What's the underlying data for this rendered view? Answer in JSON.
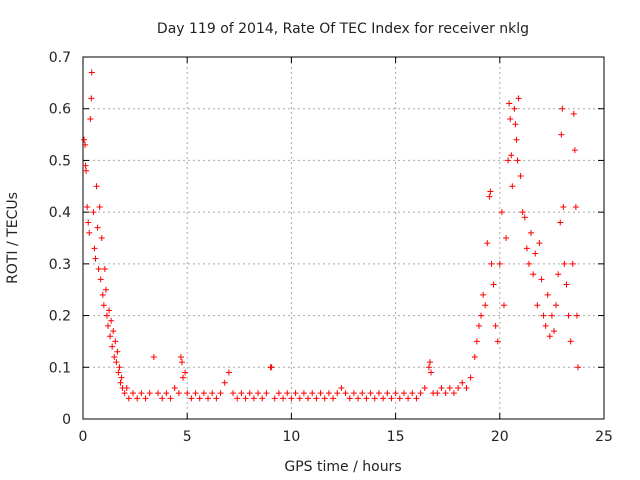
{
  "chart_data": {
    "type": "scatter",
    "title": "Day 119 of 2014, Rate Of TEC Index for receiver nklg",
    "xlabel": "GPS time / hours",
    "ylabel": "ROTI / TECUs",
    "xlim": [
      0,
      25
    ],
    "ylim": [
      0,
      0.7
    ],
    "xticks": [
      "0",
      "5",
      "10",
      "15",
      "20",
      "25"
    ],
    "yticks": [
      "0",
      "0.1",
      "0.2",
      "0.3",
      "0.4",
      "0.5",
      "0.6",
      "0.7"
    ],
    "grid": true,
    "marker": "+",
    "color": "#ff0000",
    "series": [
      {
        "name": "nklg",
        "points": [
          [
            0.05,
            0.54
          ],
          [
            0.1,
            0.53
          ],
          [
            0.12,
            0.49
          ],
          [
            0.15,
            0.48
          ],
          [
            0.2,
            0.41
          ],
          [
            0.25,
            0.38
          ],
          [
            0.3,
            0.36
          ],
          [
            0.35,
            0.58
          ],
          [
            0.4,
            0.62
          ],
          [
            0.42,
            0.67
          ],
          [
            0.5,
            0.4
          ],
          [
            0.55,
            0.33
          ],
          [
            0.6,
            0.31
          ],
          [
            0.65,
            0.45
          ],
          [
            0.7,
            0.37
          ],
          [
            0.75,
            0.29
          ],
          [
            0.8,
            0.41
          ],
          [
            0.85,
            0.27
          ],
          [
            0.9,
            0.35
          ],
          [
            0.95,
            0.24
          ],
          [
            1.0,
            0.22
          ],
          [
            1.05,
            0.29
          ],
          [
            1.1,
            0.25
          ],
          [
            1.15,
            0.2
          ],
          [
            1.2,
            0.18
          ],
          [
            1.25,
            0.21
          ],
          [
            1.3,
            0.16
          ],
          [
            1.35,
            0.19
          ],
          [
            1.4,
            0.14
          ],
          [
            1.45,
            0.17
          ],
          [
            1.5,
            0.12
          ],
          [
            1.55,
            0.15
          ],
          [
            1.6,
            0.11
          ],
          [
            1.65,
            0.13
          ],
          [
            1.7,
            0.09
          ],
          [
            1.75,
            0.1
          ],
          [
            1.8,
            0.07
          ],
          [
            1.85,
            0.08
          ],
          [
            1.9,
            0.06
          ],
          [
            2.0,
            0.05
          ],
          [
            2.1,
            0.06
          ],
          [
            2.2,
            0.04
          ],
          [
            2.4,
            0.05
          ],
          [
            2.6,
            0.04
          ],
          [
            2.8,
            0.05
          ],
          [
            3.0,
            0.04
          ],
          [
            3.2,
            0.05
          ],
          [
            3.4,
            0.12
          ],
          [
            3.6,
            0.05
          ],
          [
            3.8,
            0.04
          ],
          [
            4.0,
            0.05
          ],
          [
            4.2,
            0.04
          ],
          [
            4.4,
            0.06
          ],
          [
            4.6,
            0.05
          ],
          [
            4.7,
            0.12
          ],
          [
            4.75,
            0.11
          ],
          [
            4.8,
            0.08
          ],
          [
            4.9,
            0.09
          ],
          [
            5.0,
            0.05
          ],
          [
            5.2,
            0.04
          ],
          [
            5.4,
            0.05
          ],
          [
            5.6,
            0.04
          ],
          [
            5.8,
            0.05
          ],
          [
            6.0,
            0.04
          ],
          [
            6.2,
            0.05
          ],
          [
            6.4,
            0.04
          ],
          [
            6.6,
            0.05
          ],
          [
            6.8,
            0.07
          ],
          [
            7.0,
            0.09
          ],
          [
            7.2,
            0.05
          ],
          [
            7.4,
            0.04
          ],
          [
            7.6,
            0.05
          ],
          [
            7.8,
            0.04
          ],
          [
            8.0,
            0.05
          ],
          [
            8.2,
            0.04
          ],
          [
            8.4,
            0.05
          ],
          [
            8.6,
            0.04
          ],
          [
            8.8,
            0.05
          ],
          [
            9.0,
            0.1
          ],
          [
            9.05,
            0.1
          ],
          [
            9.2,
            0.04
          ],
          [
            9.4,
            0.05
          ],
          [
            9.6,
            0.04
          ],
          [
            9.8,
            0.05
          ],
          [
            10.0,
            0.04
          ],
          [
            10.2,
            0.05
          ],
          [
            10.4,
            0.04
          ],
          [
            10.6,
            0.05
          ],
          [
            10.8,
            0.04
          ],
          [
            11.0,
            0.05
          ],
          [
            11.2,
            0.04
          ],
          [
            11.4,
            0.05
          ],
          [
            11.6,
            0.04
          ],
          [
            11.8,
            0.05
          ],
          [
            12.0,
            0.04
          ],
          [
            12.2,
            0.05
          ],
          [
            12.4,
            0.06
          ],
          [
            12.6,
            0.05
          ],
          [
            12.8,
            0.04
          ],
          [
            13.0,
            0.05
          ],
          [
            13.2,
            0.04
          ],
          [
            13.4,
            0.05
          ],
          [
            13.6,
            0.04
          ],
          [
            13.8,
            0.05
          ],
          [
            14.0,
            0.04
          ],
          [
            14.2,
            0.05
          ],
          [
            14.4,
            0.04
          ],
          [
            14.6,
            0.05
          ],
          [
            14.8,
            0.04
          ],
          [
            15.0,
            0.05
          ],
          [
            15.2,
            0.04
          ],
          [
            15.4,
            0.05
          ],
          [
            15.6,
            0.04
          ],
          [
            15.8,
            0.05
          ],
          [
            16.0,
            0.04
          ],
          [
            16.2,
            0.05
          ],
          [
            16.4,
            0.06
          ],
          [
            16.6,
            0.1
          ],
          [
            16.65,
            0.11
          ],
          [
            16.7,
            0.09
          ],
          [
            16.8,
            0.05
          ],
          [
            17.0,
            0.05
          ],
          [
            17.2,
            0.06
          ],
          [
            17.4,
            0.05
          ],
          [
            17.6,
            0.06
          ],
          [
            17.8,
            0.05
          ],
          [
            18.0,
            0.06
          ],
          [
            18.2,
            0.07
          ],
          [
            18.4,
            0.06
          ],
          [
            18.6,
            0.08
          ],
          [
            18.8,
            0.12
          ],
          [
            18.9,
            0.15
          ],
          [
            19.0,
            0.18
          ],
          [
            19.1,
            0.2
          ],
          [
            19.2,
            0.24
          ],
          [
            19.3,
            0.22
          ],
          [
            19.4,
            0.34
          ],
          [
            19.5,
            0.43
          ],
          [
            19.55,
            0.44
          ],
          [
            19.6,
            0.3
          ],
          [
            19.7,
            0.26
          ],
          [
            19.8,
            0.18
          ],
          [
            19.9,
            0.15
          ],
          [
            20.0,
            0.3
          ],
          [
            20.1,
            0.4
          ],
          [
            20.2,
            0.22
          ],
          [
            20.3,
            0.35
          ],
          [
            20.4,
            0.5
          ],
          [
            20.45,
            0.61
          ],
          [
            20.5,
            0.58
          ],
          [
            20.55,
            0.51
          ],
          [
            20.6,
            0.45
          ],
          [
            20.7,
            0.6
          ],
          [
            20.75,
            0.57
          ],
          [
            20.8,
            0.54
          ],
          [
            20.85,
            0.5
          ],
          [
            20.9,
            0.62
          ],
          [
            21.0,
            0.47
          ],
          [
            21.1,
            0.4
          ],
          [
            21.2,
            0.39
          ],
          [
            21.3,
            0.33
          ],
          [
            21.4,
            0.3
          ],
          [
            21.5,
            0.36
          ],
          [
            21.6,
            0.28
          ],
          [
            21.7,
            0.32
          ],
          [
            21.8,
            0.22
          ],
          [
            21.9,
            0.34
          ],
          [
            22.0,
            0.27
          ],
          [
            22.1,
            0.2
          ],
          [
            22.2,
            0.18
          ],
          [
            22.3,
            0.24
          ],
          [
            22.4,
            0.16
          ],
          [
            22.5,
            0.2
          ],
          [
            22.6,
            0.17
          ],
          [
            22.7,
            0.22
          ],
          [
            22.8,
            0.28
          ],
          [
            22.9,
            0.38
          ],
          [
            22.95,
            0.55
          ],
          [
            23.0,
            0.6
          ],
          [
            23.05,
            0.41
          ],
          [
            23.1,
            0.3
          ],
          [
            23.2,
            0.26
          ],
          [
            23.3,
            0.2
          ],
          [
            23.4,
            0.15
          ],
          [
            23.5,
            0.3
          ],
          [
            23.55,
            0.59
          ],
          [
            23.6,
            0.52
          ],
          [
            23.65,
            0.41
          ],
          [
            23.7,
            0.2
          ],
          [
            23.75,
            0.1
          ]
        ]
      }
    ]
  }
}
